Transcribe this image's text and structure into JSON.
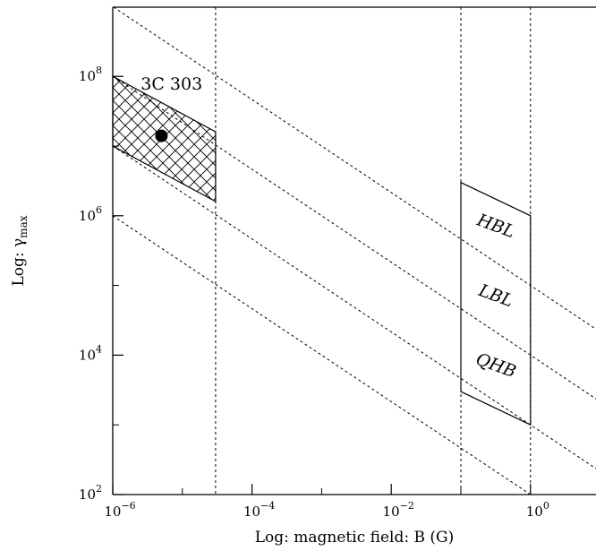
{
  "chart_data": {
    "type": "line",
    "xlabel": "Log: magnetic field: B (G)",
    "ylabel_prefix": "Log: γ",
    "ylabel_sub": "max",
    "xscale": "log",
    "yscale": "log",
    "xlim": [
      1e-06,
      1.0
    ],
    "ylim": [
      100.0,
      1000000000.0
    ],
    "x_ticks": [
      {
        "value": 1e-06,
        "base": "10",
        "exp": "−6"
      },
      {
        "value": 0.0001,
        "base": "10",
        "exp": "−4"
      },
      {
        "value": 0.01,
        "base": "10",
        "exp": "−2"
      },
      {
        "value": 1.0,
        "base": "10",
        "exp": "0"
      }
    ],
    "y_ticks": [
      {
        "value": 100.0,
        "base": "10",
        "exp": "2"
      },
      {
        "value": 10000.0,
        "base": "10",
        "exp": "4"
      },
      {
        "value": 1000000.0,
        "base": "10",
        "exp": "6"
      },
      {
        "value": 100000000.0,
        "base": "10",
        "exp": "8"
      }
    ],
    "reference_lines": [
      {
        "style": "dotted",
        "points": [
          [
            1e-06,
            1000000000.0
          ],
          [
            1.0,
            100000.0
          ]
        ]
      },
      {
        "style": "dotted",
        "points": [
          [
            1e-06,
            100000000.0
          ],
          [
            1.0,
            10000.0
          ]
        ]
      },
      {
        "style": "dotted",
        "points": [
          [
            1e-06,
            10000000.0
          ],
          [
            1.0,
            1000.0
          ]
        ]
      },
      {
        "style": "dotted",
        "points": [
          [
            1e-06,
            1000000.0
          ],
          [
            1.0,
            100.0
          ]
        ]
      }
    ],
    "vertical_lines": [
      3e-05,
      0.1,
      1
    ],
    "regions": [
      {
        "hatched": true,
        "points": [
          [
            1e-06,
            100000000.0
          ],
          [
            3e-05,
            16000000.0
          ],
          [
            3e-05,
            1600000.0
          ],
          [
            1e-06,
            10000000.0
          ]
        ]
      },
      {
        "hatched": false,
        "points": [
          [
            0.1,
            3000000.0
          ],
          [
            1,
            1000000.0
          ],
          [
            1,
            1000.0
          ],
          [
            0.1,
            3000.0
          ]
        ]
      }
    ],
    "points": [
      {
        "x": 5e-06,
        "y": 14000000.0
      }
    ],
    "annotations": [
      {
        "text": "3C 303",
        "x": 7e-06,
        "y": 65000000.0,
        "rotate": 0
      },
      {
        "text": "HBL",
        "x": 0.3,
        "y": 600000.0,
        "rotate": 20
      },
      {
        "text": "LBL",
        "x": 0.3,
        "y": 60000.0,
        "rotate": 20
      },
      {
        "text": "QHB",
        "x": 0.3,
        "y": 6000.0,
        "rotate": 20
      }
    ],
    "grid": false,
    "legend": "none"
  }
}
